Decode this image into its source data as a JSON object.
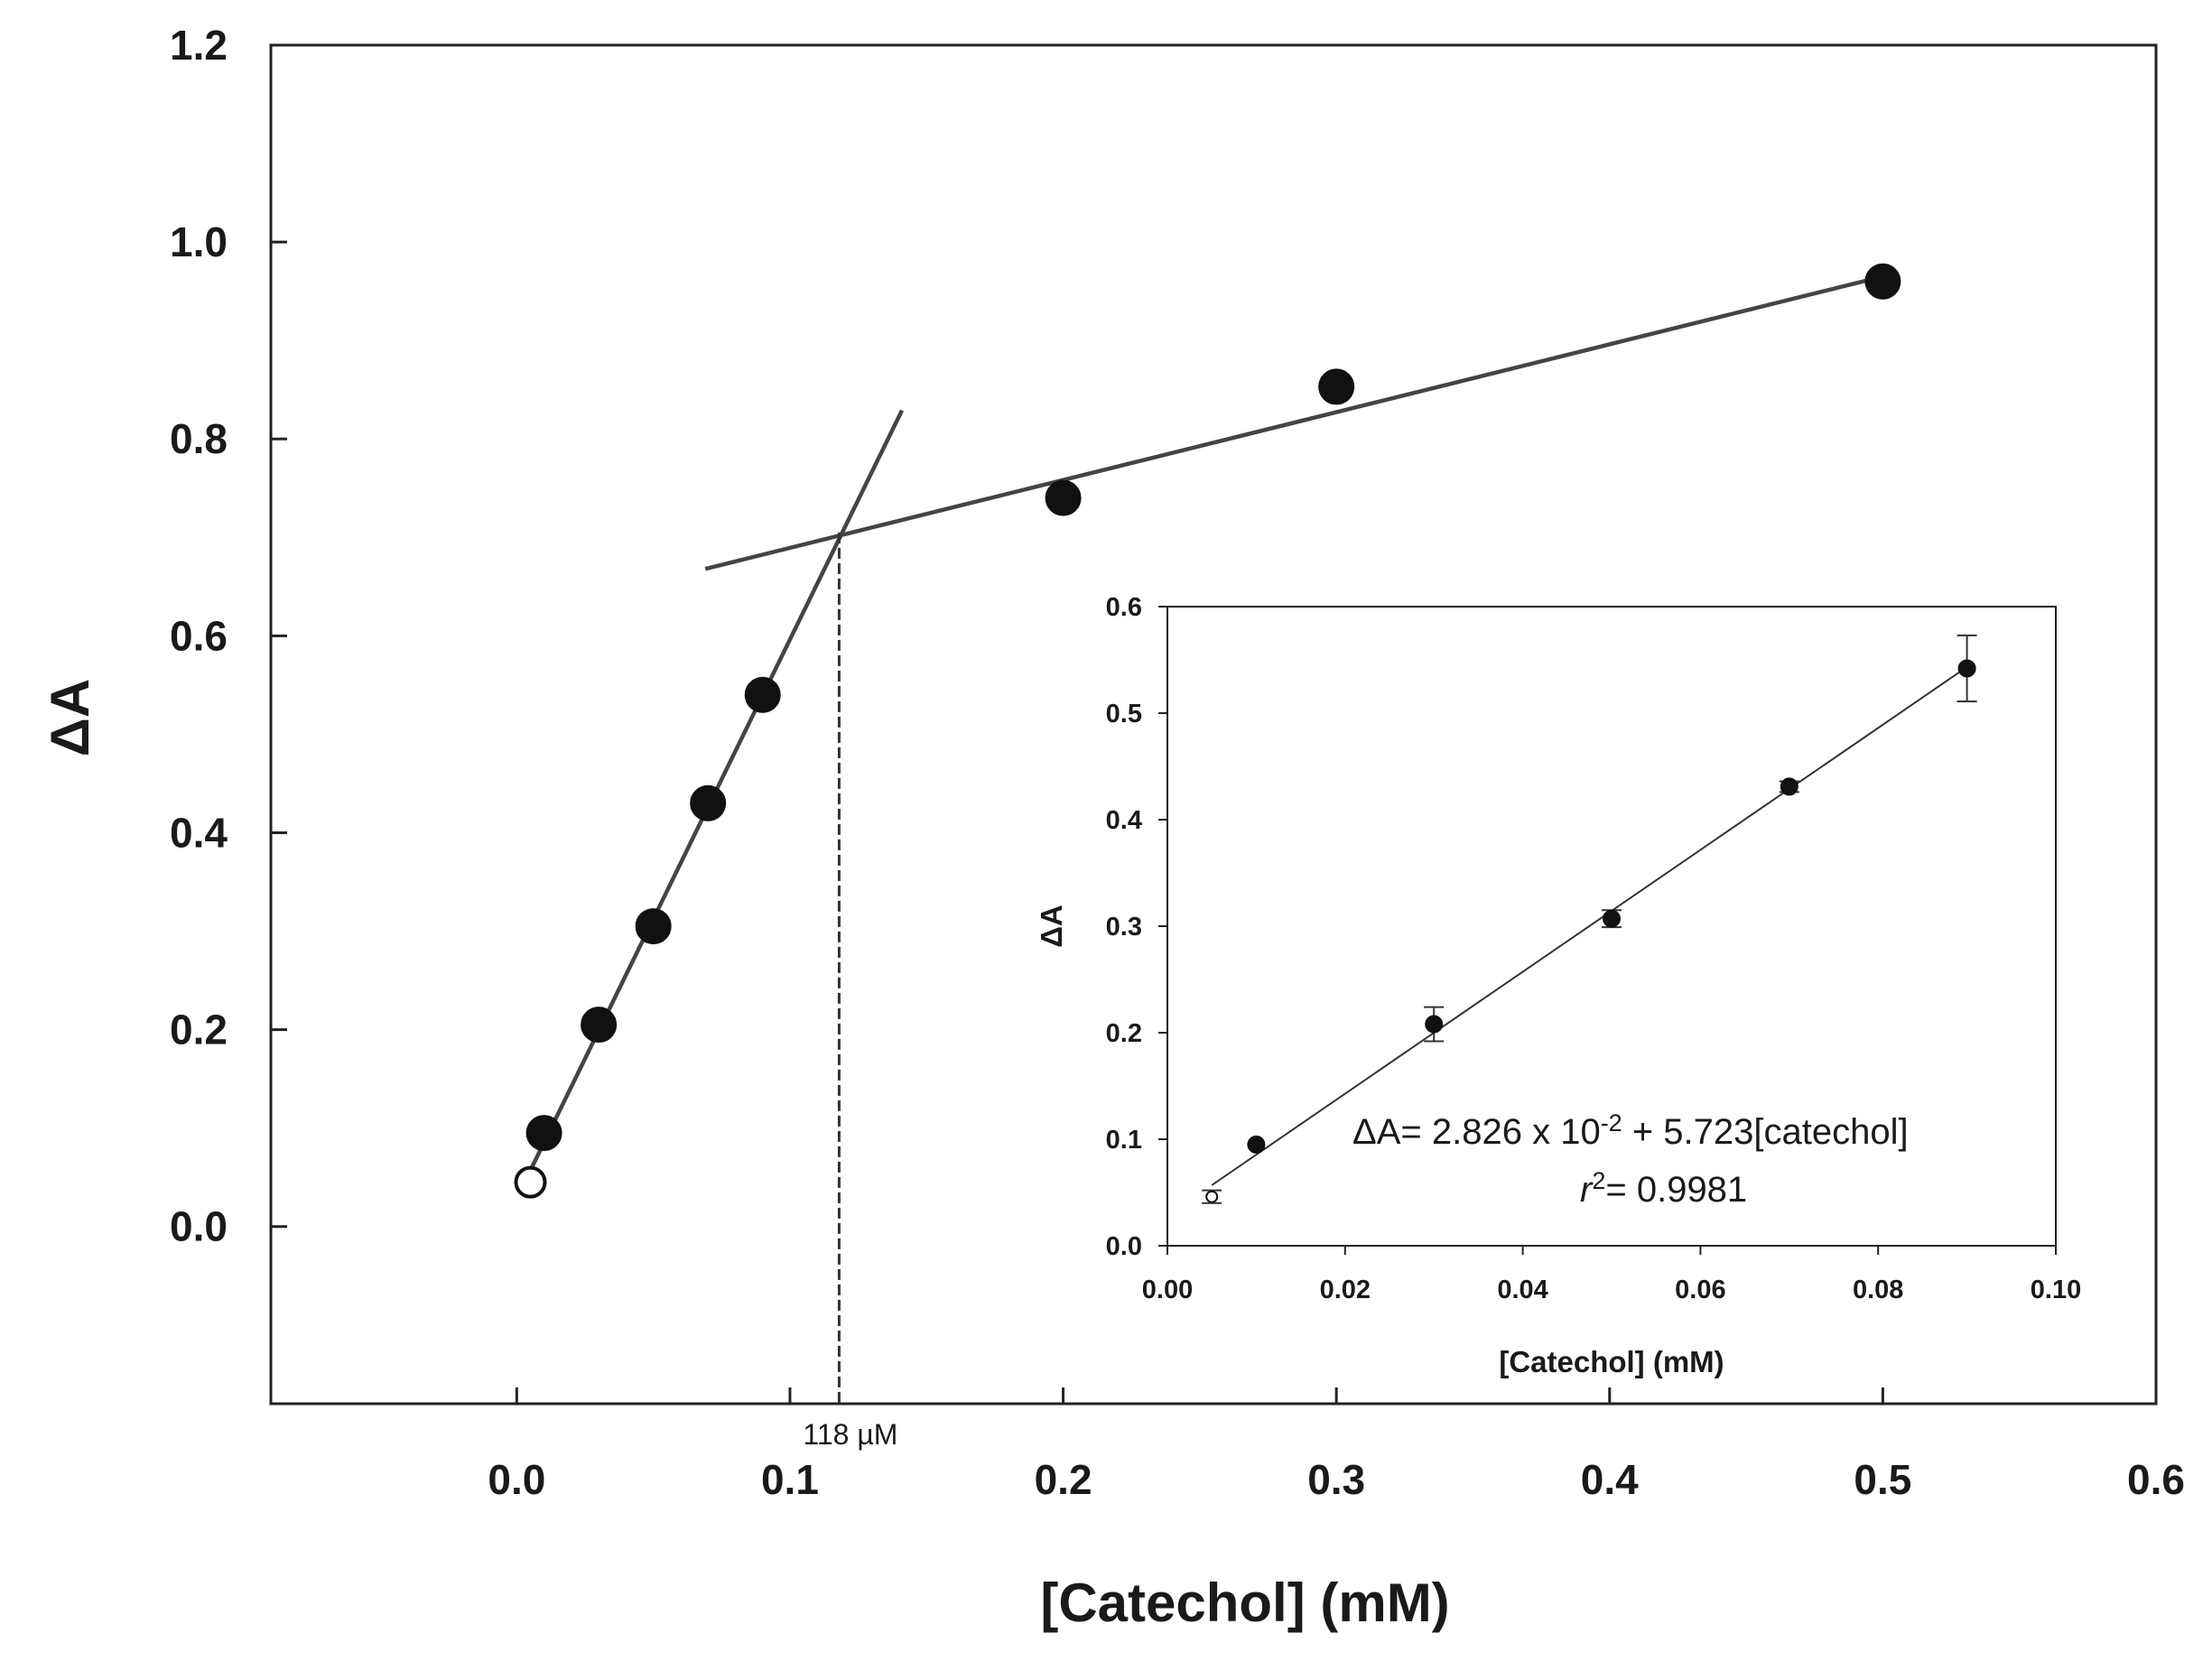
{
  "chart_data": [
    {
      "id": "main",
      "type": "scatter",
      "title": "",
      "xlabel": "[Catechol] (mM)",
      "ylabel": "ΔA",
      "xlim": [
        -0.09,
        0.6
      ],
      "ylim": [
        -0.18,
        1.2
      ],
      "xticks": [
        0.0,
        0.1,
        0.2,
        0.3,
        0.4,
        0.5,
        0.6
      ],
      "xtick_labels": [
        "0.0",
        "0.1",
        "0.2",
        "0.3",
        "0.4",
        "0.5",
        "0.6"
      ],
      "yticks": [
        0.0,
        0.2,
        0.4,
        0.6,
        0.8,
        1.0,
        1.2
      ],
      "ytick_labels": [
        "0.0",
        "0.2",
        "0.4",
        "0.6",
        "0.8",
        "1.0",
        "1.2"
      ],
      "series": [
        {
          "name": "filled points",
          "marker": "filled-circle",
          "x": [
            0.01,
            0.03,
            0.05,
            0.07,
            0.09,
            0.2,
            0.3,
            0.5
          ],
          "y": [
            0.095,
            0.205,
            0.305,
            0.43,
            0.54,
            0.74,
            0.853,
            0.96
          ]
        },
        {
          "name": "open point",
          "marker": "open-circle",
          "x": [
            0.005
          ],
          "y": [
            0.045
          ]
        }
      ],
      "lines": [
        {
          "name": "low-concentration fit",
          "x": [
            0.005,
            0.141
          ],
          "y": [
            0.057,
            0.829
          ]
        },
        {
          "name": "high-concentration fit",
          "x": [
            0.069,
            0.5
          ],
          "y": [
            0.668,
            0.965
          ]
        }
      ],
      "annotations": {
        "intersection_x": 0.118,
        "intersection_y": 0.705,
        "intersection_label": "118 µM"
      }
    },
    {
      "id": "inset",
      "type": "scatter",
      "title": "",
      "xlabel": "[Catechol] (mM)",
      "ylabel": "ΔA",
      "xlim": [
        0.0,
        0.1
      ],
      "ylim": [
        0.0,
        0.6
      ],
      "xticks": [
        0.0,
        0.02,
        0.04,
        0.06,
        0.08,
        0.1
      ],
      "xtick_labels": [
        "0.00",
        "0.02",
        "0.04",
        "0.06",
        "0.08",
        "0.10"
      ],
      "yticks": [
        0.0,
        0.1,
        0.2,
        0.3,
        0.4,
        0.5,
        0.6
      ],
      "ytick_labels": [
        "0.0",
        "0.1",
        "0.2",
        "0.3",
        "0.4",
        "0.5",
        "0.6"
      ],
      "series": [
        {
          "name": "data",
          "x": [
            0.005,
            0.01,
            0.03,
            0.05,
            0.07,
            0.09
          ],
          "y": [
            0.046,
            0.095,
            0.208,
            0.307,
            0.431,
            0.542
          ],
          "error": [
            0.006,
            0.0,
            0.016,
            0.008,
            0.005,
            0.031
          ],
          "markers": [
            "open",
            "filled",
            "filled",
            "filled",
            "filled",
            "filled"
          ]
        }
      ],
      "fit": {
        "intercept": 0.02826,
        "slope": 5.723,
        "x_range": [
          0.005,
          0.09
        ],
        "equation_parts": {
          "lhs": "ΔA= 2.826 x 10",
          "exponent": "-2",
          "rhs": " + 5.723[catechol]"
        },
        "r2_var": "r",
        "r2_exp": "2",
        "r2_value": "= 0.9981"
      }
    }
  ]
}
